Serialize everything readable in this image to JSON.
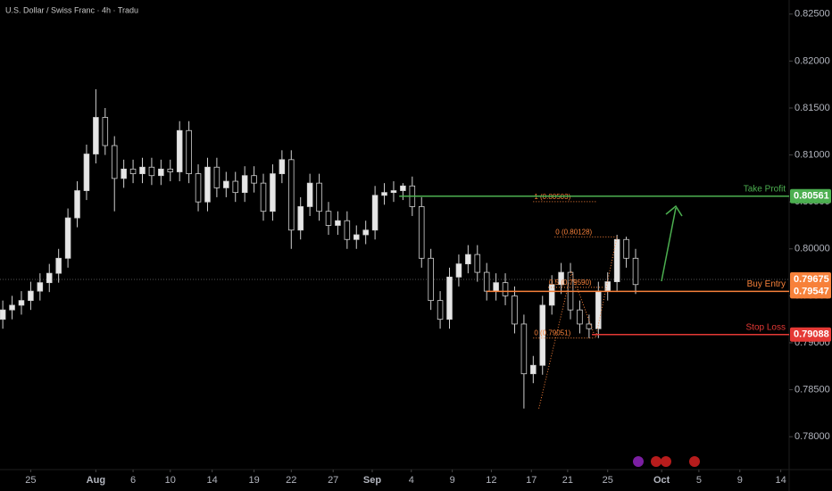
{
  "chart_data": {
    "type": "candlestick",
    "title": "U.S. Dollar / Swiss Franc · 4h · Tradu",
    "x": [
      -3,
      -2,
      -1,
      0,
      1,
      2,
      3,
      4,
      5,
      6,
      7,
      8,
      9,
      10,
      11,
      12,
      13,
      14,
      15,
      16,
      17,
      18,
      19,
      20,
      21,
      22,
      23,
      24,
      25,
      26,
      27,
      28,
      29,
      30,
      31,
      32,
      33,
      34,
      35,
      36,
      37,
      38,
      39,
      40,
      41,
      42,
      43,
      44,
      45,
      46,
      47,
      48,
      49,
      50,
      51,
      52,
      53,
      54,
      55,
      56,
      57,
      58,
      59,
      60,
      61,
      62,
      63,
      64,
      65
    ],
    "open": [
      0.7925,
      0.7935,
      0.794,
      0.7945,
      0.7955,
      0.7964,
      0.7974,
      0.799,
      0.8033,
      0.8062,
      0.8101,
      0.814,
      0.811,
      0.8075,
      0.8085,
      0.808,
      0.8087,
      0.8078,
      0.8085,
      0.8082,
      0.8126,
      0.808,
      0.805,
      0.8087,
      0.8065,
      0.8072,
      0.806,
      0.8078,
      0.807,
      0.804,
      0.808,
      0.8095,
      0.802,
      0.8045,
      0.807,
      0.804,
      0.8025,
      0.803,
      0.801,
      0.8015,
      0.802,
      0.8057,
      0.806,
      0.8062,
      0.8067,
      0.8045,
      0.799,
      0.7945,
      0.7925,
      0.797,
      0.7984,
      0.7994,
      0.7975,
      0.7955,
      0.7964,
      0.795,
      0.792,
      0.7867,
      0.7876,
      0.794,
      0.7962,
      0.7975,
      0.7935,
      0.792,
      0.7915,
      0.7955,
      0.7965,
      0.801,
      0.799
    ],
    "high": [
      0.7945,
      0.795,
      0.7955,
      0.7965,
      0.7974,
      0.7984,
      0.8,
      0.8043,
      0.8072,
      0.8111,
      0.817,
      0.815,
      0.812,
      0.8095,
      0.8095,
      0.8097,
      0.8097,
      0.8095,
      0.8095,
      0.8136,
      0.8136,
      0.809,
      0.8097,
      0.8097,
      0.8082,
      0.8082,
      0.8088,
      0.8088,
      0.808,
      0.809,
      0.8105,
      0.8105,
      0.8055,
      0.808,
      0.808,
      0.805,
      0.804,
      0.804,
      0.8025,
      0.803,
      0.8067,
      0.807,
      0.8072,
      0.807,
      0.8077,
      0.8055,
      0.8,
      0.7955,
      0.798,
      0.7994,
      0.8004,
      0.8004,
      0.7985,
      0.7974,
      0.7974,
      0.796,
      0.793,
      0.7886,
      0.795,
      0.7972,
      0.7985,
      0.7985,
      0.7945,
      0.793,
      0.7965,
      0.7975,
      0.8015,
      0.8013,
      0.8
    ],
    "low": [
      0.7915,
      0.7925,
      0.793,
      0.7935,
      0.7945,
      0.7954,
      0.7964,
      0.798,
      0.8023,
      0.8052,
      0.8091,
      0.81,
      0.804,
      0.8065,
      0.807,
      0.807,
      0.8068,
      0.8068,
      0.8072,
      0.8072,
      0.807,
      0.804,
      0.804,
      0.8055,
      0.8055,
      0.805,
      0.805,
      0.806,
      0.803,
      0.803,
      0.807,
      0.8,
      0.801,
      0.8035,
      0.803,
      0.8015,
      0.8015,
      0.8,
      0.8,
      0.8005,
      0.801,
      0.8047,
      0.805,
      0.8052,
      0.8035,
      0.798,
      0.7935,
      0.7915,
      0.7915,
      0.796,
      0.7974,
      0.7965,
      0.7945,
      0.7945,
      0.794,
      0.791,
      0.783,
      0.7857,
      0.7866,
      0.793,
      0.7952,
      0.7925,
      0.791,
      0.7905,
      0.7905,
      0.7945,
      0.7955,
      0.798,
      0.7952
    ],
    "close": [
      0.7935,
      0.794,
      0.7945,
      0.7955,
      0.7964,
      0.7974,
      0.799,
      0.8033,
      0.8062,
      0.8101,
      0.814,
      0.811,
      0.8075,
      0.8085,
      0.808,
      0.8087,
      0.8078,
      0.8085,
      0.8082,
      0.8126,
      0.808,
      0.805,
      0.8087,
      0.8065,
      0.8072,
      0.806,
      0.8078,
      0.807,
      0.804,
      0.808,
      0.8095,
      0.802,
      0.8045,
      0.807,
      0.804,
      0.8025,
      0.803,
      0.801,
      0.8015,
      0.802,
      0.8057,
      0.806,
      0.8062,
      0.8067,
      0.8045,
      0.799,
      0.7945,
      0.7925,
      0.797,
      0.7984,
      0.7994,
      0.7975,
      0.7955,
      0.7964,
      0.795,
      0.792,
      0.7867,
      0.7876,
      0.794,
      0.7962,
      0.7975,
      0.7935,
      0.792,
      0.7915,
      0.7955,
      0.7965,
      0.801,
      0.799,
      0.7962
    ],
    "up_color": "#e6e6e6",
    "down_color": "#000000",
    "wick_color": "#d0d0d0",
    "xlim": [
      -3.3,
      81.5
    ],
    "xticks": [
      {
        "value": 0,
        "label": "25"
      },
      {
        "value": 7,
        "label": "Aug"
      },
      {
        "value": 11,
        "label": "6"
      },
      {
        "value": 15,
        "label": "10"
      },
      {
        "value": 19.5,
        "label": "14"
      },
      {
        "value": 24,
        "label": "19"
      },
      {
        "value": 28,
        "label": "22"
      },
      {
        "value": 32.5,
        "label": "27"
      },
      {
        "value": 36.7,
        "label": "Sep"
      },
      {
        "value": 40.9,
        "label": "4"
      },
      {
        "value": 45.3,
        "label": "9"
      },
      {
        "value": 49.5,
        "label": "12"
      },
      {
        "value": 53.8,
        "label": "17"
      },
      {
        "value": 57.7,
        "label": "21"
      },
      {
        "value": 62,
        "label": "25"
      },
      {
        "value": 67.8,
        "label": "Oct"
      },
      {
        "value": 71.8,
        "label": "5"
      },
      {
        "value": 76.2,
        "label": "9"
      },
      {
        "value": 80.6,
        "label": "14"
      }
    ],
    "ylim": [
      0.7765,
      0.8265
    ],
    "yticks": [
      {
        "value": 0.825,
        "label": "0.82500"
      },
      {
        "value": 0.82,
        "label": "0.82000"
      },
      {
        "value": 0.815,
        "label": "0.81500"
      },
      {
        "value": 0.81,
        "label": "0.81000"
      },
      {
        "value": 0.805,
        "label": "0.80500"
      },
      {
        "value": 0.8,
        "label": "0.80000"
      },
      {
        "value": 0.795,
        "label": "0.79500"
      },
      {
        "value": 0.79,
        "label": "0.79000"
      },
      {
        "value": 0.785,
        "label": "0.78500"
      },
      {
        "value": 0.78,
        "label": "0.78000"
      }
    ],
    "last_price": {
      "value": 0.79675,
      "label": "0.79675",
      "color": "#f7813a"
    },
    "levels": [
      {
        "name": "Take Profit",
        "value": 0.80561,
        "value_label": "0.80561",
        "color": "#4caf50",
        "start_x": 39.6
      },
      {
        "name": "Buy Entry",
        "value": 0.79547,
        "value_label": "0.79547",
        "color": "#f7813a",
        "start_x": 49
      },
      {
        "name": "Stop Loss",
        "value": 0.79088,
        "value_label": "0.79088",
        "color": "#e53935",
        "start_x": 60.3
      }
    ],
    "fib_labels": [
      {
        "label": "1 (0.80503)",
        "value": 0.80503,
        "x": [
          54,
          60.8
        ]
      },
      {
        "label": "0 (0.80128)",
        "value": 0.80128,
        "x": [
          56.3,
          63
        ]
      },
      {
        "label": "0.5 (0.79590)",
        "value": 0.7959,
        "x": [
          55.6,
          61.5
        ]
      },
      {
        "label": "0 (0.79051)",
        "value": 0.79051,
        "x": [
          54,
          60.5
        ]
      }
    ],
    "pattern": {
      "x": [
        54.6,
        58.1,
        60.7,
        63
      ],
      "y": [
        0.783,
        0.7975,
        0.7905,
        0.8013
      ],
      "color": "#f7813a"
    }
  }
}
